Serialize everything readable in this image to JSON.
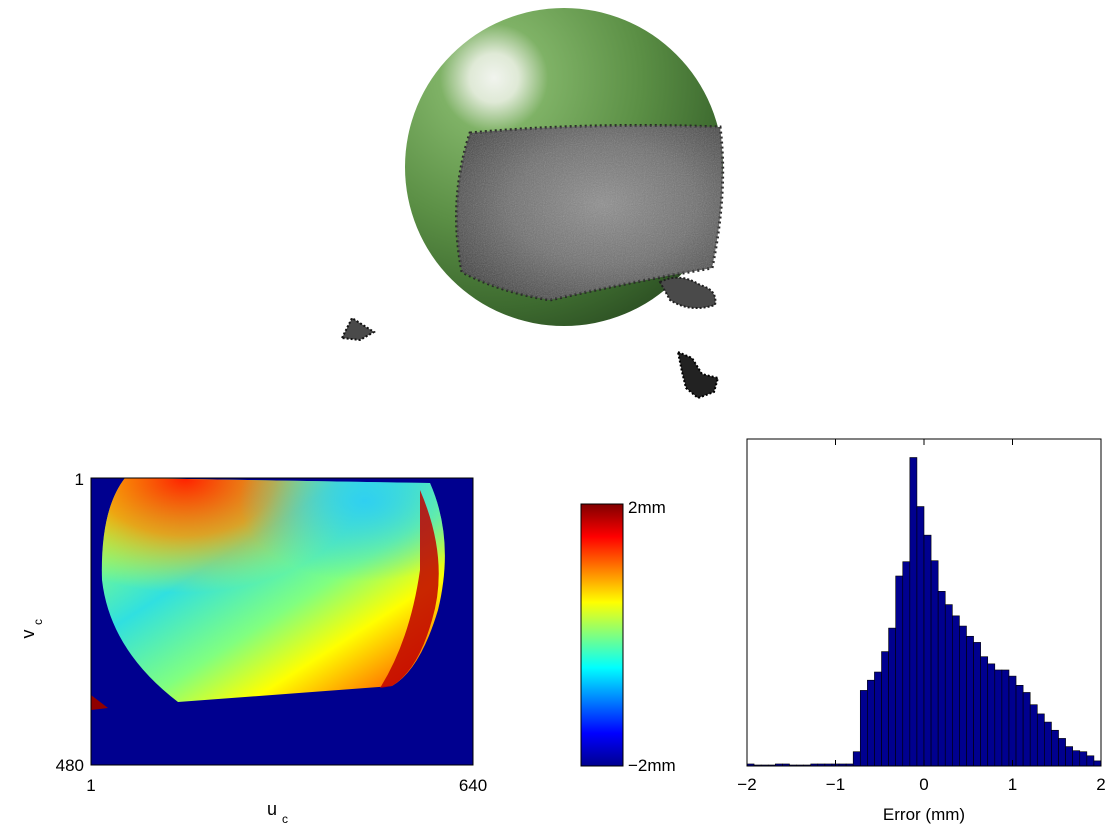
{
  "top_figure": {
    "sphere_color": "#5a8f47"
  },
  "error_map": {
    "x_ticks": [
      "1",
      "640"
    ],
    "y_ticks": [
      "1",
      "480"
    ],
    "xlabel": "u",
    "xlabel_sub": "c",
    "ylabel": "v",
    "ylabel_sub": "c",
    "background_color": "#00008f"
  },
  "colorbar": {
    "max_label": "2mm",
    "min_label": "−2mm",
    "colormap": [
      "#00008f",
      "#0000ff",
      "#00ffff",
      "#ffff00",
      "#ff0000",
      "#800000"
    ]
  },
  "chart_data": {
    "type": "bar",
    "xlabel": "Error (mm)",
    "ylabel": "",
    "xlim": [
      -2,
      2
    ],
    "x_ticks": [
      "−2",
      "−1",
      "0",
      "1",
      "2"
    ],
    "bar_color": "#00008f",
    "bin_width": 0.08,
    "x": [
      -1.96,
      -1.88,
      -1.8,
      -1.72,
      -1.64,
      -1.56,
      -1.48,
      -1.4,
      -1.32,
      -1.24,
      -1.16,
      -1.08,
      -1.0,
      -0.92,
      -0.84,
      -0.76,
      -0.68,
      -0.6,
      -0.52,
      -0.44,
      -0.36,
      -0.28,
      -0.2,
      -0.12,
      -0.04,
      0.04,
      0.12,
      0.2,
      0.28,
      0.36,
      0.44,
      0.52,
      0.6,
      0.68,
      0.76,
      0.84,
      0.92,
      1.0,
      1.08,
      1.16,
      1.24,
      1.32,
      1.4,
      1.48,
      1.56,
      1.64,
      1.72,
      1.8,
      1.88,
      1.96
    ],
    "values": [
      2,
      1,
      1,
      1,
      2,
      2,
      1,
      1,
      1,
      2,
      2,
      2,
      2,
      2,
      2,
      14,
      74,
      84,
      92,
      112,
      135,
      186,
      200,
      302,
      254,
      226,
      201,
      171,
      158,
      147,
      137,
      127,
      121,
      107,
      100,
      94,
      94,
      88,
      79,
      72,
      60,
      51,
      43,
      35,
      27,
      19,
      15,
      14,
      10,
      5
    ]
  }
}
